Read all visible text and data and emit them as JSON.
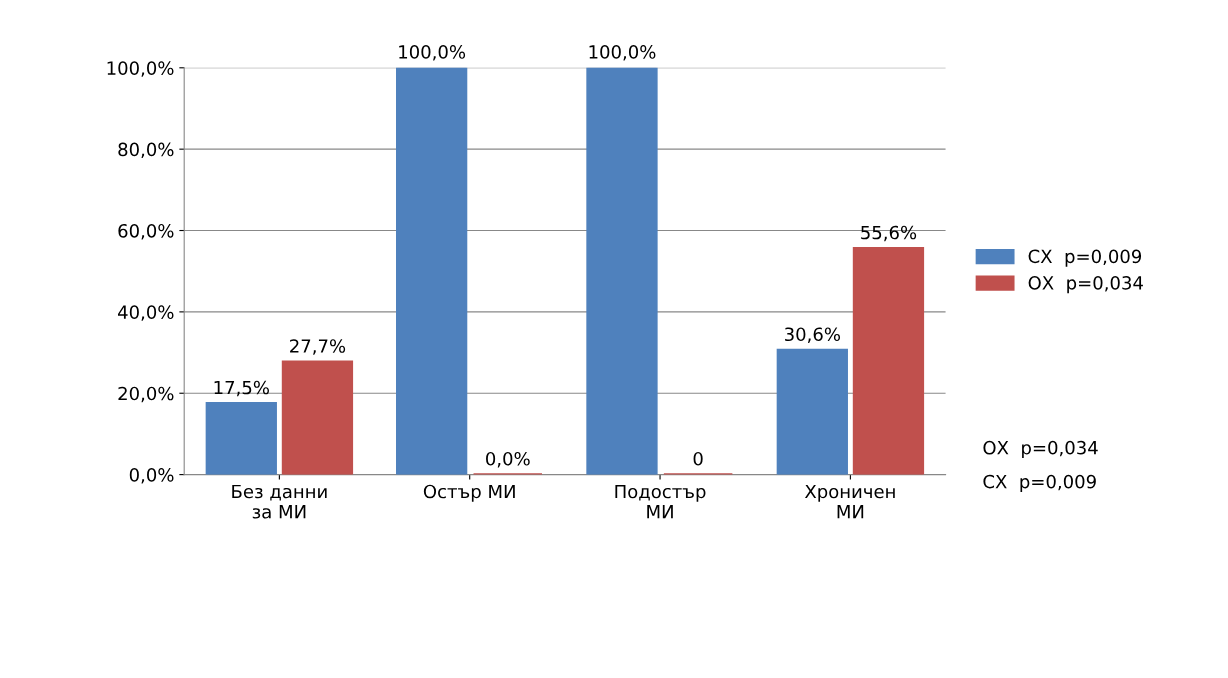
{
  "chart_data": {
    "type": "bar",
    "categories": [
      "Без данни\nза МИ",
      "Остър МИ",
      "Подостър\nМИ",
      "Хроничен\nМИ"
    ],
    "series": [
      {
        "name": "СХ  p=0,009",
        "color": "#4f81bd",
        "values": [
          17.5,
          100,
          100,
          30.6
        ],
        "value_labels": [
          "17,5%",
          "100,0%",
          "100,0%",
          "30,6%"
        ]
      },
      {
        "name": "ОХ  p=0,034",
        "color": "#c0504d",
        "values": [
          27.7,
          0,
          0,
          55.6
        ],
        "value_labels": [
          "27,7%",
          "0,0%",
          "0",
          "55,6%"
        ]
      }
    ],
    "ylim": [
      0,
      100
    ],
    "yticks": [
      {
        "value": 0,
        "label": "0,0%"
      },
      {
        "value": 20,
        "label": "20,0%"
      },
      {
        "value": 40,
        "label": "40,0%"
      },
      {
        "value": 60,
        "label": "60,0%"
      },
      {
        "value": 80,
        "label": "80,0%"
      },
      {
        "value": 100,
        "label": "100,0%"
      }
    ],
    "grid": "y",
    "legend": "right",
    "annotations": [
      "ОХ  p=0,034",
      "СХ  p=0,009"
    ]
  }
}
